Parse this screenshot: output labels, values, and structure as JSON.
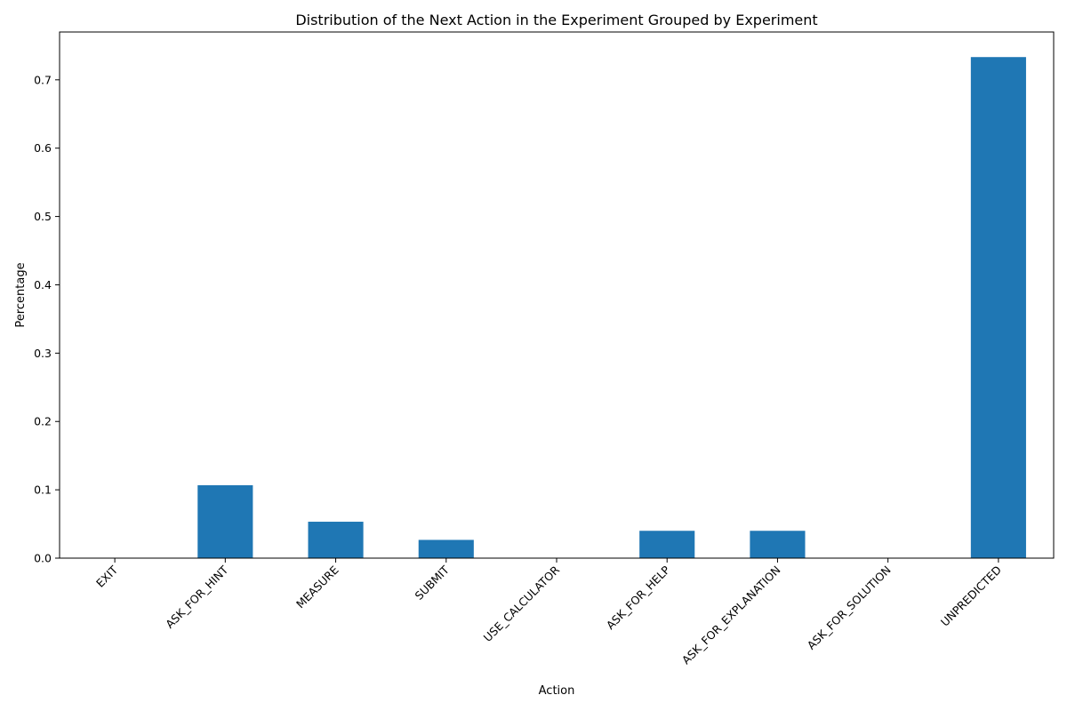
{
  "chart_data": {
    "type": "bar",
    "title": "Distribution of the Next Action in the Experiment Grouped by Experiment",
    "xlabel": "Action",
    "ylabel": "Percentage",
    "categories": [
      "EXIT",
      "ASK_FOR_HINT",
      "MEASURE",
      "SUBMIT",
      "USE_CALCULATOR",
      "ASK_FOR_HELP",
      "ASK_FOR_EXPLANATION",
      "ASK_FOR_SOLUTION",
      "UNPREDICTED"
    ],
    "values": [
      0.0,
      0.1067,
      0.0533,
      0.0267,
      0.0,
      0.04,
      0.04,
      0.0,
      0.7333
    ],
    "ylim": [
      0,
      0.77
    ],
    "yticks": [
      0.0,
      0.1,
      0.2,
      0.3,
      0.4,
      0.5,
      0.6,
      0.7
    ],
    "ytick_labels": [
      "0.0",
      "0.1",
      "0.2",
      "0.3",
      "0.4",
      "0.5",
      "0.6",
      "0.7"
    ],
    "grid": false,
    "bar_color": "#1f77b4"
  }
}
